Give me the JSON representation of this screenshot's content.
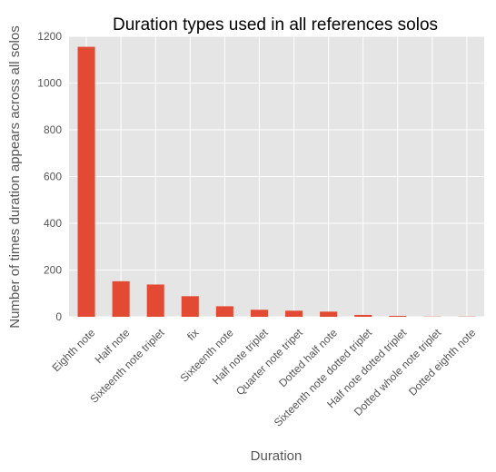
{
  "chart_data": {
    "type": "bar",
    "title": "Duration types used in all references solos",
    "xlabel": "Duration",
    "ylabel": "Number of times duration appears across all solos",
    "categories": [
      "Eighth note",
      "Half note",
      "Sixteenth note triplet",
      "fix",
      "Sixteenth note",
      "Half note triplet",
      "Quarter note tripet",
      "Dotted half note",
      "Sixteenth note dotted triplet",
      "Half note dotted triplet",
      "Dotted whole note triplet",
      "Dotted eighth note"
    ],
    "values": [
      1155,
      152,
      138,
      88,
      45,
      30,
      26,
      22,
      8,
      4,
      1,
      1
    ],
    "ylim": [
      0,
      1200
    ],
    "yticks": [
      0,
      200,
      400,
      600,
      800,
      1000,
      1200
    ],
    "grid": true,
    "colors": {
      "bar": "#e24a33",
      "plot_background": "#e5e5e5",
      "grid": "#ffffff"
    }
  }
}
